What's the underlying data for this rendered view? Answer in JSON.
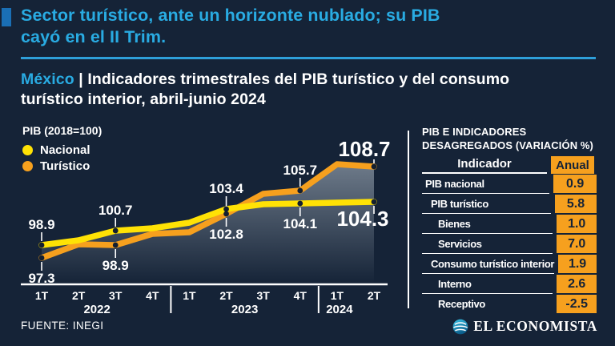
{
  "colors": {
    "background": "#152337",
    "accent_cyan": "#29ABE2",
    "rule_blue": "#2E9FD9",
    "square_blue": "#1A6FB5",
    "nacional_yellow": "#FFE205",
    "turistico_orange": "#F6A01E",
    "navy_text": "#152337",
    "white": "#FFFFFF"
  },
  "header": {
    "title": "Sector turístico, ante un horizonte nublado; su PIB\ncayó en el II Trim."
  },
  "subtitle": {
    "prefix": "México",
    "separator": " | ",
    "text": "Indicadores trimestrales del PIB turístico y del consumo\nturístico interior, abril-junio 2024"
  },
  "chart_data": {
    "type": "line",
    "title": "PIB (2018=100)",
    "legend_position": "top-left",
    "grid": false,
    "ylim": [
      95,
      111
    ],
    "categories": [
      "1T",
      "2T",
      "3T",
      "4T",
      "1T",
      "2T",
      "3T",
      "4T",
      "1T",
      "2T"
    ],
    "year_groups": [
      {
        "label": "2022",
        "from": 0,
        "to": 3
      },
      {
        "label": "2023",
        "from": 4,
        "to": 7
      },
      {
        "label": "2024",
        "from": 8,
        "to": 9
      }
    ],
    "series": [
      {
        "name": "Nacional",
        "color": "#FFE205",
        "values": [
          98.9,
          99.5,
          100.7,
          101.0,
          101.7,
          103.4,
          104.0,
          104.1,
          104.2,
          104.3
        ],
        "labeled_points": [
          {
            "index": 0,
            "text": "98.9",
            "side": "above"
          },
          {
            "index": 2,
            "text": "100.7",
            "side": "above"
          },
          {
            "index": 5,
            "text": "103.4",
            "side": "above",
            "connector_through": true
          },
          {
            "index": 7,
            "text": "104.1",
            "side": "below"
          },
          {
            "index": 9,
            "text": "104.3",
            "side": "below",
            "emphasis": true,
            "dx": -14
          }
        ]
      },
      {
        "name": "Turístico",
        "color": "#F6A01E",
        "values": [
          97.3,
          99.0,
          98.9,
          100.3,
          100.5,
          102.8,
          105.3,
          105.7,
          109.0,
          108.7
        ],
        "labeled_points": [
          {
            "index": 0,
            "text": "97.3",
            "side": "below"
          },
          {
            "index": 2,
            "text": "98.9",
            "side": "below"
          },
          {
            "index": 5,
            "text": "102.8",
            "side": "below"
          },
          {
            "index": 7,
            "text": "105.7",
            "side": "above"
          },
          {
            "index": 9,
            "text": "108.7",
            "side": "above",
            "emphasis": true,
            "dx": -12
          }
        ]
      }
    ]
  },
  "table": {
    "title_line1": "PIB E INDICADORES",
    "title_line2": "DESAGREGADOS (VARIACIÓN %)",
    "col_indicator": "Indicador",
    "col_annual": "Anual",
    "rows": [
      {
        "label": "PIB nacional",
        "indent": 0,
        "annual": "0.9"
      },
      {
        "label": "PIB turístico",
        "indent": 1,
        "annual": "5.8"
      },
      {
        "label": "Bienes",
        "indent": 2,
        "annual": "1.0"
      },
      {
        "label": "Servicios",
        "indent": 2,
        "annual": "7.0"
      },
      {
        "label": "Consumo turístico interior",
        "indent": 1,
        "annual": "1.9"
      },
      {
        "label": "Interno",
        "indent": 2,
        "annual": "2.6"
      },
      {
        "label": "Receptivo",
        "indent": 2,
        "annual": "-2.5"
      }
    ]
  },
  "footer": {
    "source": "FUENTE: INEGI",
    "brand": "EL ECONOMISTA",
    "brand_icon": "globe-icon"
  }
}
